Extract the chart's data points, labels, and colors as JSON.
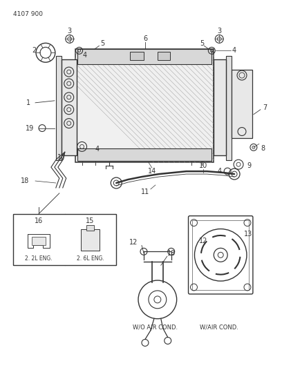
{
  "title": "4107 900",
  "bg_color": "#ffffff",
  "lc": "#333333",
  "bottom_labels": {
    "16_eng": "2. 2L ENG.",
    "15_eng": "2. 6L ENG.",
    "wo_ac": "W/O AIR COND.",
    "w_ac": "W/AIR COND."
  }
}
